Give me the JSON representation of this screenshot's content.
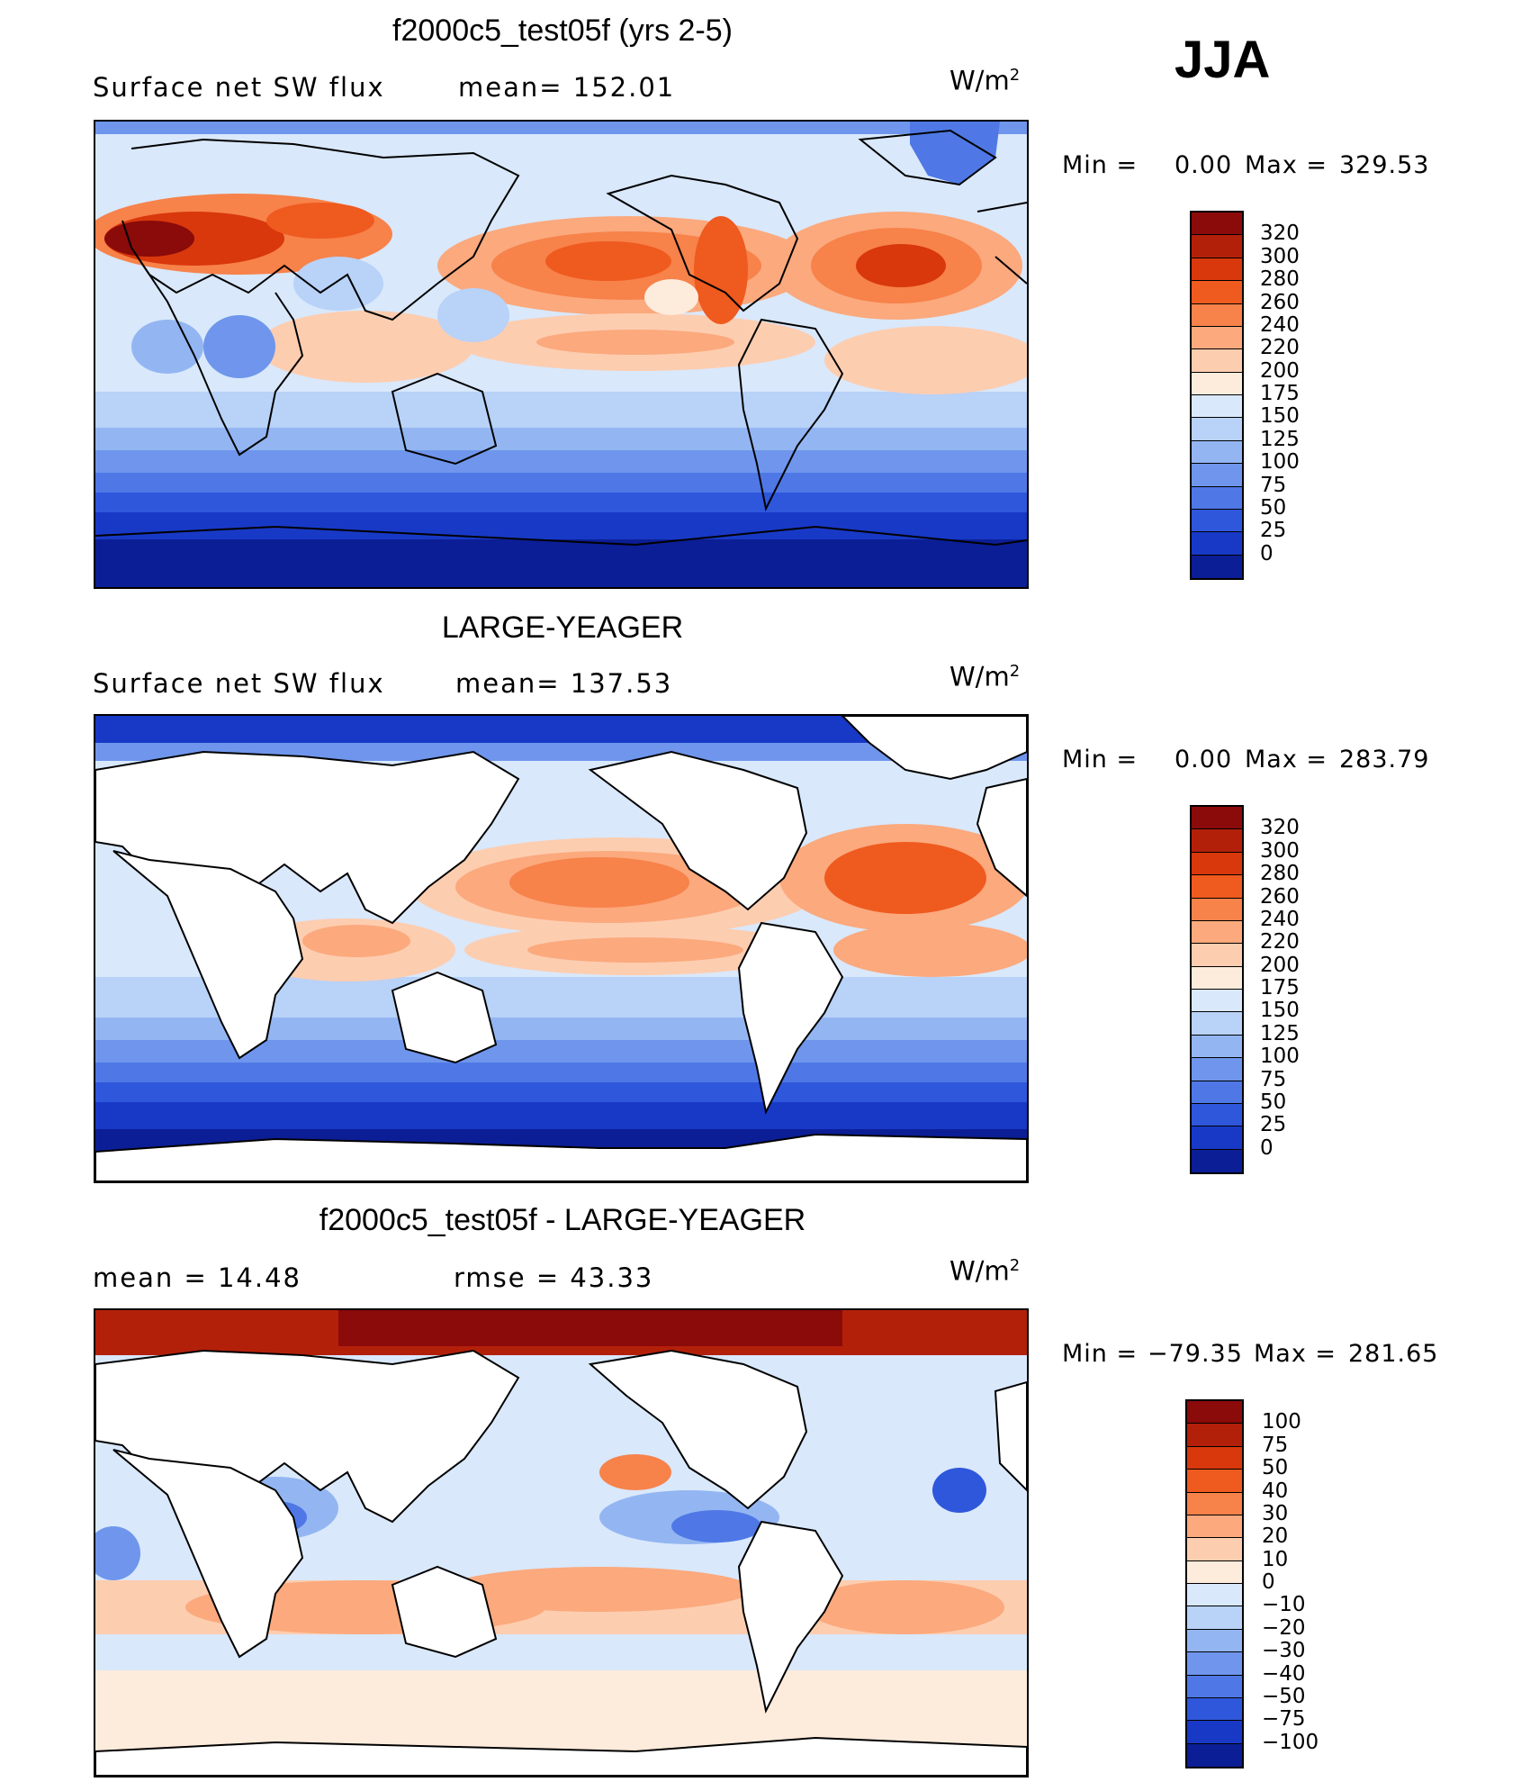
{
  "season": "JJA",
  "panels": [
    {
      "title": "f2000c5_test05f (yrs 2-5)",
      "left_label": "Surface net SW flux",
      "stat_label": "mean= 152.01",
      "units_base": "W/m",
      "units_exp": "2",
      "min_label": "Min =",
      "min_value": "0.00",
      "max_label": "Max =",
      "max_value": "329.53",
      "colorbar_labels": [
        "320",
        "300",
        "280",
        "260",
        "240",
        "220",
        "200",
        "175",
        "150",
        "125",
        "100",
        "75",
        "50",
        "25",
        "0"
      ]
    },
    {
      "title": "LARGE-YEAGER",
      "left_label": "Surface net SW flux",
      "stat_label": "mean= 137.53",
      "units_base": "W/m",
      "units_exp": "2",
      "min_label": "Min =",
      "min_value": "0.00",
      "max_label": "Max =",
      "max_value": "283.79",
      "colorbar_labels": [
        "320",
        "300",
        "280",
        "260",
        "240",
        "220",
        "200",
        "175",
        "150",
        "125",
        "100",
        "75",
        "50",
        "25",
        "0"
      ]
    },
    {
      "title": "f2000c5_test05f - LARGE-YEAGER",
      "left_label": "mean =  14.48",
      "stat_label": "rmse =  43.33",
      "units_base": "W/m",
      "units_exp": "2",
      "min_label": "Min =",
      "min_value": "−79.35",
      "max_label": "Max =",
      "max_value": "281.65",
      "colorbar_labels": [
        "100",
        "75",
        "50",
        "40",
        "30",
        "20",
        "10",
        "0",
        "−10",
        "−20",
        "−30",
        "−40",
        "−50",
        "−75",
        "−100"
      ]
    }
  ],
  "colors": {
    "abs_scale": [
      "#8b0a0a",
      "#b3200a",
      "#d8380c",
      "#ef5a1f",
      "#f7824a",
      "#fba97d",
      "#fdcdb0",
      "#fdebdc",
      "#d9e8fb",
      "#b8d2f8",
      "#93b6f2",
      "#6f96ec",
      "#4f78e6",
      "#2f57dc",
      "#1839c6",
      "#0b1e95"
    ],
    "diff_scale": [
      "#8b0a0a",
      "#b3200a",
      "#d8380c",
      "#ef5a1f",
      "#f7824a",
      "#fba97d",
      "#fdcdb0",
      "#fdebdc",
      "#d9e8fb",
      "#b8d2f8",
      "#93b6f2",
      "#6f96ec",
      "#4f78e6",
      "#2f57dc",
      "#1839c6",
      "#0b1e95"
    ]
  }
}
